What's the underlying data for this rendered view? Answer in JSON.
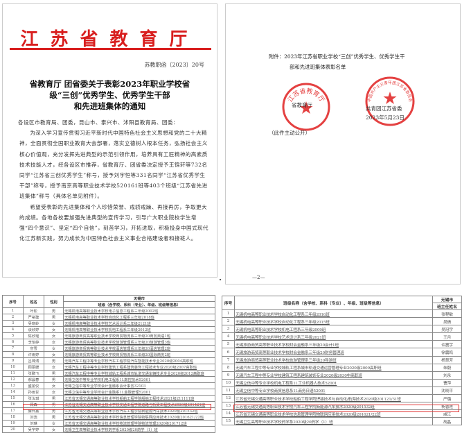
{
  "page1": {
    "header": "江苏省教育厅",
    "doc_no": "苏教职函〔2023〕20号",
    "title": [
      "省教育厅 团省委关于表彰2023年职业学校省",
      "级“三创”优秀学生、优秀学生干部",
      "和先进班集体的通知"
    ],
    "address": "各设区市教育局、团委，昆山市、泰兴市、沭阳县教育局、团委：",
    "paragraphs": [
      "为深入学习宣传贯彻习近平新时代中国特色社会主义思想和党的二十大精神，全面贯彻全国职业教育大会部署，落实立德树人根本任务，弘扬社会主义核心价值观，充分发挥先进典型的示范引领作用，培养具有工匠精神的高素质技术技能人才，经各设区市推荐，省教育厅、团省委决定授予王锦轩等732名同学“江苏省三创优秀学生”称号，授予刘宇恒等331名同学“江苏省优秀学生干部”称号，授予南京高等职业技术学校520161班等403个班级“江苏省先进班集体”称号（具体名单见附件）。",
      "希望受表彰的先进集体和个人珍惜荣誉、戒骄戒躁、再接再厉，争取更大的成绩。各地各校要加强先进典型的宣传学习，引导广大职业院校学生增强“四个意识”、坚定“四个自信”，刻苦学习，开拓进取，积极投身中国式现代化江苏新实践，努力成长为中国特色社会主义事业合格建设者和接班人。"
    ]
  },
  "page2": {
    "attachment": [
      "附件：2023年江苏省职业学校“三创”优秀学生、优秀学生干",
      "部和先进班集体表彰名单"
    ],
    "signer1": "省教育厅",
    "signer2": "共青团江苏省委",
    "date": "2023年5月23日",
    "public_note": "（此件主动公开）",
    "page_number": "—2—",
    "seal1_text": "江苏省教育厅",
    "seal2_text": "中国共产主义青年团江苏省委员会"
  },
  "table1": {
    "region": "无锡市",
    "headers": [
      "序号",
      "姓名",
      "性别",
      "班级（含学校、系科（专业）、年级、班级等信息）"
    ],
    "rows": [
      [
        "1",
        "叶松",
        "男",
        "无锡机电高等职业技术学校电子信息工程系三年级2002班"
      ],
      [
        "2",
        "严裕建",
        "男",
        "无锡机电高等职业技术学校自动化工程系三年级2018班"
      ],
      [
        "3",
        "吴晓岭",
        "女",
        "无锡机电高等职业技术学校艺术设计系二年级2121班"
      ],
      [
        "4",
        "谈欣婷",
        "女",
        "无锡机电高等职业技术学校机电工程系三年级2012班"
      ],
      [
        "5",
        "陈欣瑶",
        "女",
        "无锡旅游商贸高等职业技术学校商贸物流系三年级20商务英语1班"
      ],
      [
        "6",
        "李怡婷",
        "女",
        "无锡旅游商贸高等职业技术学校旅游管理系三年级20旅游管理3班"
      ],
      [
        "7",
        "宣雪",
        "女",
        "无锡旅游商贸高等职业技术学校酒店管理系三年级20酒店管理2班"
      ],
      [
        "8",
        "许雨婷",
        "女",
        "无锡旅游商贸高等职业技术学校商贸物流系三年级20国际商务2班"
      ],
      [
        "9",
        "吕锦涛",
        "男",
        "无锡汽车工程中等专业学校汽车工程学院汽车智能技术专业2020级2004高职班"
      ],
      [
        "10",
        "顾丽媛",
        "女",
        "无锡汽车工程中等专业学校建筑工程系建筑装饰工程技术专业2020级2007高职班"
      ],
      [
        "11",
        "张鹏飞",
        "男",
        "无锡汽车工程中等专业学校城轨工程系城市轨道交通车辆技术专业2020级2012高职班"
      ],
      [
        "12",
        "郝晨春",
        "男",
        "无锡立信中等专业学校机电工程系1L数控技术52001"
      ],
      [
        "13",
        "盛丽仪",
        "女",
        "无锡立信中等专业学校会计金融系会计事务32103"
      ],
      [
        "14",
        "孙雨甘",
        "女",
        "无锡立信中等专业学校会计金融系1L金融管理52001"
      ],
      [
        "15",
        "张汝琪",
        "男",
        "江苏省无锡交通高等职业技术学校船舶工程学院船舶工程技术2021级211111班"
      ],
      [
        "16",
        "顾森",
        "男",
        "江苏省无锡交通高等职业技术学校交通工程学院道路与桥梁工程技术2020级201421班"
      ],
      [
        "17",
        "滕怀鑫",
        "男",
        "江苏省无锡交通高等职业技术学校汽车工程学院新能源汽车技术2020级201532班"
      ],
      [
        "18",
        "刘浩",
        "男",
        "江苏省无锡交通高等职业技术学校信息管理学院物联网应用技术2020级201621/22班"
      ],
      [
        "19",
        "刘琳",
        "女",
        "江苏省无锡交通高等职业技术学校物流管理学院物流管理2020级201712班"
      ],
      [
        "20",
        "吴宇婷",
        "女",
        "无锡卫生高等职业技术学校药学系2020级20药学（1）班"
      ]
    ],
    "highlighted_row": 17
  },
  "table2": {
    "region": "无锡市",
    "headers": [
      "序号",
      "班级名称（含学校、系科（专业）、年级、班级等信息）",
      "班主任姓名"
    ],
    "rows": [
      [
        "1",
        "无锡机电高等职业技术学校自动化工程系三年级2016班",
        "张程敏"
      ],
      [
        "2",
        "无锡机电高等职业技术学校自动化工程系三年级2015班",
        "吴倩"
      ],
      [
        "3",
        "无锡机电高等职业技术学校机电工程系三年级2009班",
        "吴冠宇"
      ],
      [
        "4",
        "无锡机电高等职业技术学校艺术设计系三年级2021班",
        "王月"
      ],
      [
        "5",
        "无锡旅游商贸高等职业技术学校财会金融系三年级20会计1班",
        "许震宇"
      ],
      [
        "6",
        "无锡旅游商贸高等职业技术学校财会金融系三年级20财务管理班",
        "徐震鸣"
      ],
      [
        "7",
        "无锡旅游商贸高等职业技术学校旅游管理系三年级20导游班",
        "杨慧芳"
      ],
      [
        "8",
        "无锡汽车工程中等专业学校城轨工程系城市轨道交通运营管理专业2020级2009高职班",
        "朱毅"
      ],
      [
        "9",
        "无锡汽车工程中等专业学校建筑工程系建筑装饰专业2020级2030中高职班",
        "刘永"
      ],
      [
        "10",
        "无锡立信中等专业学校机电工程系1L工业机器人技术52001",
        "曹萍"
      ],
      [
        "11",
        "无锡立信中等专业学校商贸信息系1L商务日语52001",
        "沈晓平"
      ],
      [
        "12",
        "江苏省无锡交通高等职业技术学校船舶工程学院焊接技术与自动化/航海技术2020级201121/31班",
        "严璐"
      ],
      [
        "13",
        "江苏省无锡交通高等职业技术学校汽车工程学院新能源汽车技术2020级201532班",
        "杨香莲"
      ],
      [
        "14",
        "江苏省无锡交通高等职业技术学校信息管理学院物联网应用技术2020级201621/22班",
        "戚江"
      ],
      [
        "15",
        "无锡卫生高等职业技术学校药学系2020级20药学（1）班",
        "胡晶"
      ]
    ],
    "highlighted_row": 13
  },
  "colors": {
    "header_red": "#d81e1e",
    "highlight": "#e03030"
  }
}
